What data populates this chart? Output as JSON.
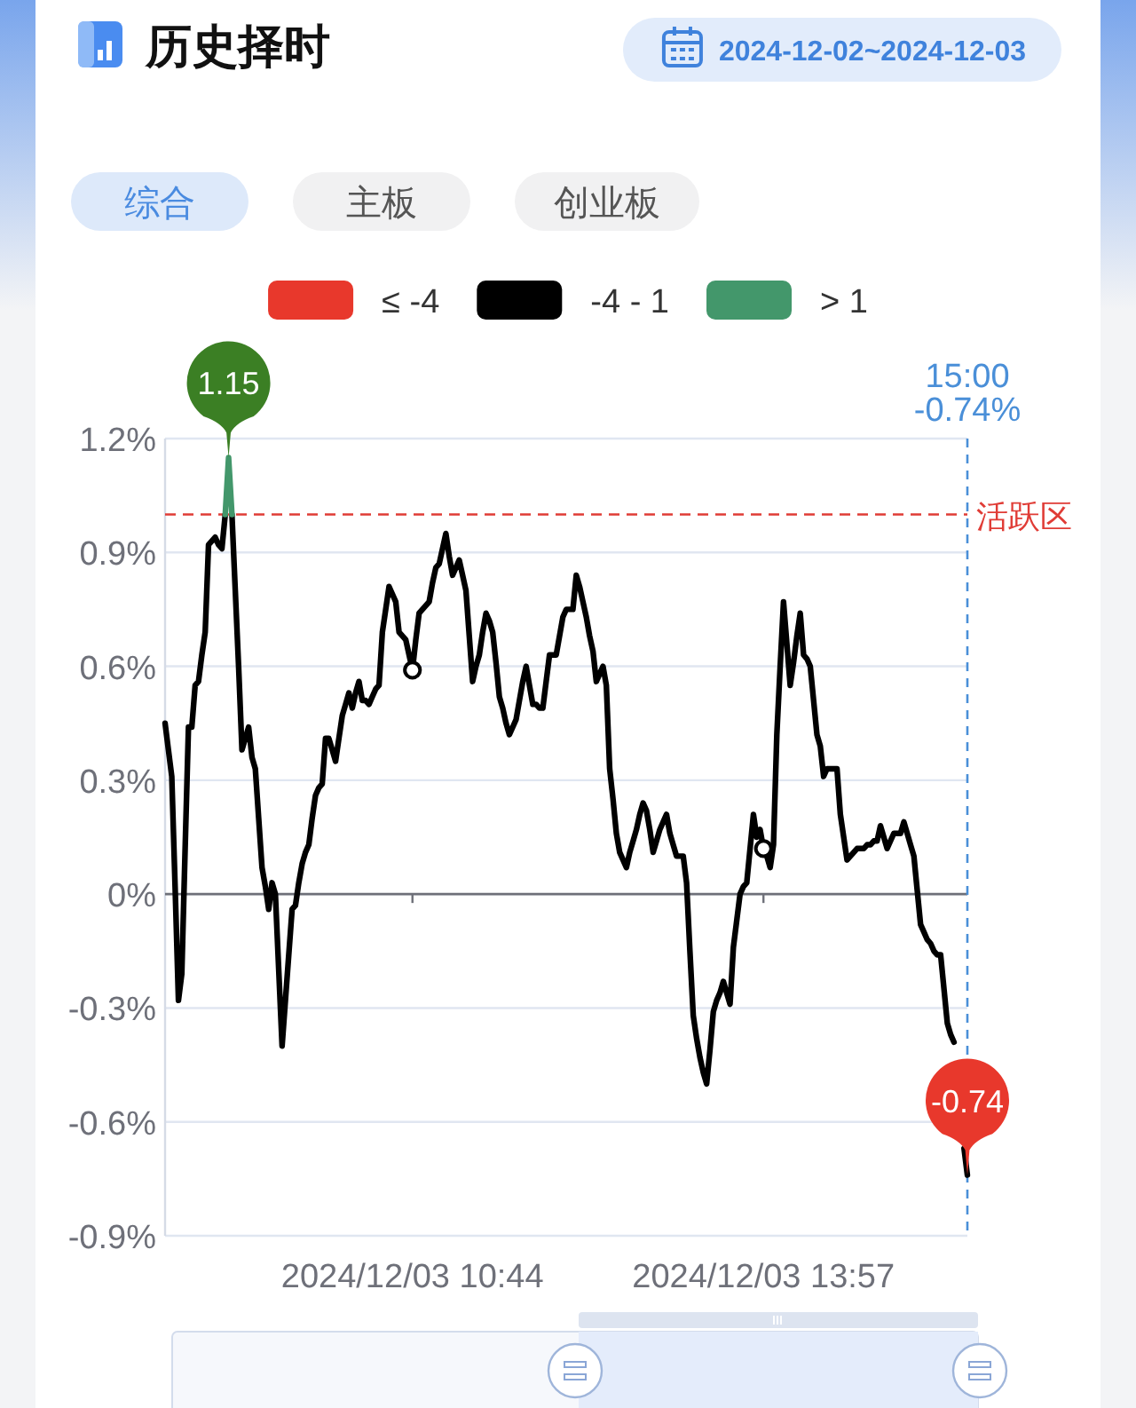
{
  "chart_data": {
    "type": "line",
    "title": "历史择时",
    "subtitle": "2024-12-02~2024-12-03",
    "annotations": [
      "综合",
      "主板",
      "创业板",
      {
        "text": "1.15",
        "y": 1.15
      },
      {
        "text": "-0.74",
        "y": -0.74
      },
      "15:00\n-0.74%"
    ],
    "categories": [
      null,
      null,
      null,
      null,
      null,
      null,
      null,
      null,
      null,
      null,
      null,
      null,
      null,
      null,
      null,
      null,
      null,
      null,
      null,
      null,
      null,
      null,
      null,
      null,
      null,
      null,
      null,
      null,
      null,
      null,
      null,
      null,
      null,
      null,
      null,
      null,
      null,
      null,
      null,
      null,
      null,
      null,
      null,
      null,
      null,
      null,
      null,
      null,
      null,
      null,
      null,
      null,
      null,
      null,
      null,
      null,
      null,
      null,
      null,
      null,
      null,
      null,
      null,
      null,
      null,
      null,
      null,
      null,
      null,
      null,
      null,
      null,
      null,
      null,
      "2024/12/03 10:44",
      null,
      null,
      null,
      null,
      null,
      null,
      null,
      null,
      null,
      null,
      null,
      null,
      null,
      null,
      null,
      null,
      null,
      null,
      null,
      null,
      null,
      null,
      null,
      null,
      null,
      null,
      null,
      null,
      null,
      null,
      null,
      null,
      null,
      null,
      null,
      null,
      null,
      null,
      null,
      null,
      null,
      null,
      null,
      null,
      null,
      null,
      null,
      null,
      null,
      null,
      null,
      null,
      null,
      null,
      null,
      null,
      null,
      null,
      null,
      null,
      null,
      null,
      null,
      null,
      null,
      null,
      null,
      null,
      null,
      null,
      null,
      null,
      null,
      null,
      null,
      null,
      null,
      null,
      null,
      null,
      null,
      null,
      null,
      null,
      null,
      null,
      null,
      null,
      null,
      null,
      null,
      null,
      null,
      null,
      null,
      null,
      null,
      null,
      null,
      null,
      null,
      null,
      null,
      null,
      "2024/12/03 13:57",
      null,
      null,
      null,
      null,
      null,
      null,
      null,
      null,
      null,
      null,
      null,
      null,
      null,
      null,
      null,
      null,
      null,
      null,
      null,
      null,
      null,
      null,
      null,
      null,
      null,
      null,
      null,
      null,
      null,
      null,
      null,
      null,
      null,
      null,
      null,
      null,
      null,
      null,
      null,
      null,
      null,
      null,
      null,
      null,
      null,
      null,
      null,
      null,
      null,
      null,
      null,
      null,
      null,
      null,
      null,
      null,
      null,
      null,
      null,
      null,
      null
    ],
    "series": [
      {
        "name": "≤ -4",
        "color": "#e8382c",
        "values": [
          null,
          null,
          null,
          null,
          null,
          null,
          null,
          null,
          null,
          null,
          null,
          null,
          null,
          null,
          null,
          null,
          null,
          null,
          null,
          null,
          null,
          null,
          null,
          null,
          null,
          null,
          null,
          null,
          null,
          null,
          null,
          null,
          null,
          null,
          null,
          null,
          null,
          null,
          null,
          null,
          null,
          null,
          null,
          null,
          null,
          null,
          null,
          null,
          null,
          null,
          null,
          null,
          null,
          null,
          null,
          null,
          null,
          null,
          null,
          null,
          null,
          null,
          null,
          null,
          null,
          null,
          null,
          null,
          null,
          null,
          null,
          null,
          null,
          null,
          null,
          null,
          null,
          null,
          null,
          null,
          null,
          null,
          null,
          null,
          null,
          null,
          null,
          null,
          null,
          null,
          null,
          null,
          null,
          null,
          null,
          null,
          null,
          null,
          null,
          null,
          null,
          null,
          null,
          null,
          null,
          null,
          null,
          null,
          null,
          null,
          null,
          null,
          null,
          null,
          null,
          null,
          null,
          null,
          null,
          null,
          null,
          null,
          null,
          null,
          null,
          null,
          null,
          null,
          null,
          null,
          null,
          null,
          null,
          null,
          null,
          null,
          null,
          null,
          null,
          null,
          null,
          null,
          null,
          null,
          null,
          null,
          null,
          null,
          null,
          null,
          null,
          null,
          null,
          null,
          null,
          null,
          null,
          null,
          null,
          null,
          null,
          null,
          null,
          null,
          null,
          null,
          null,
          null,
          null,
          null,
          null,
          null,
          null,
          null,
          null,
          null,
          null,
          null,
          null,
          null,
          null,
          null,
          null,
          null,
          null,
          null,
          null,
          null,
          null,
          null,
          null,
          null,
          null,
          null,
          null,
          null,
          null,
          null,
          null,
          null,
          null,
          null,
          null,
          null,
          null,
          null,
          null,
          null,
          null,
          null,
          null,
          null,
          null,
          null,
          null,
          null,
          null,
          null,
          null,
          null,
          null,
          null,
          null,
          null,
          null,
          null,
          null,
          null,
          null,
          null,
          null,
          null,
          null,
          null,
          null,
          null,
          null,
          null,
          null,
          null,
          null
        ]
      },
      {
        "name": "-4 - 1",
        "color": "#000000",
        "values": [
          0.45,
          0.38,
          0.31,
          0.02,
          -0.28,
          -0.21,
          0.12,
          0.44,
          0.44,
          0.55,
          0.56,
          0.63,
          0.69,
          0.92,
          0.93,
          0.94,
          0.92,
          0.91,
          1.0,
          null,
          1.0,
          0.8,
          0.6,
          0.38,
          0.41,
          0.44,
          0.36,
          0.33,
          0.2,
          0.07,
          0.02,
          -0.04,
          0.03,
          0.0,
          -0.2,
          -0.4,
          -0.28,
          -0.16,
          -0.04,
          -0.03,
          0.03,
          0.08,
          0.11,
          0.13,
          0.2,
          0.26,
          0.28,
          0.29,
          0.41,
          0.41,
          0.38,
          0.35,
          0.41,
          0.47,
          0.5,
          0.53,
          0.49,
          0.53,
          0.56,
          0.51,
          0.51,
          0.5,
          0.52,
          0.54,
          0.55,
          0.69,
          0.75,
          0.81,
          0.79,
          0.77,
          0.69,
          0.68,
          0.67,
          0.63,
          0.59,
          0.67,
          0.74,
          0.75,
          0.76,
          0.77,
          0.82,
          0.86,
          0.87,
          0.91,
          0.95,
          0.89,
          0.84,
          0.86,
          0.88,
          0.84,
          0.8,
          0.68,
          0.56,
          0.6,
          0.63,
          0.69,
          0.74,
          0.72,
          0.69,
          0.61,
          0.52,
          0.49,
          0.45,
          0.42,
          0.44,
          0.46,
          0.51,
          0.56,
          0.6,
          0.55,
          0.5,
          0.5,
          0.49,
          0.49,
          0.56,
          0.63,
          0.63,
          0.63,
          0.68,
          0.73,
          0.75,
          0.75,
          0.75,
          0.84,
          0.81,
          0.77,
          0.73,
          0.68,
          0.64,
          0.56,
          0.58,
          0.6,
          0.55,
          0.33,
          0.25,
          0.16,
          0.11,
          0.09,
          0.07,
          0.11,
          0.14,
          0.17,
          0.21,
          0.24,
          0.22,
          0.17,
          0.11,
          0.14,
          0.17,
          0.19,
          0.21,
          0.16,
          0.13,
          0.1,
          0.1,
          0.1,
          0.03,
          -0.15,
          -0.32,
          -0.38,
          -0.43,
          -0.47,
          -0.5,
          -0.41,
          -0.31,
          -0.28,
          -0.26,
          -0.23,
          -0.26,
          -0.29,
          -0.14,
          -0.07,
          0.0,
          0.02,
          0.03,
          0.12,
          0.21,
          0.15,
          0.17,
          0.12,
          0.1,
          0.07,
          0.13,
          0.42,
          0.6,
          0.77,
          0.66,
          0.55,
          0.61,
          0.68,
          0.74,
          0.63,
          0.62,
          0.6,
          0.51,
          0.42,
          0.39,
          0.31,
          0.33,
          0.33,
          0.33,
          0.33,
          0.21,
          0.15,
          0.09,
          0.1,
          0.11,
          0.12,
          0.12,
          0.12,
          0.13,
          0.13,
          0.14,
          0.14,
          0.18,
          0.15,
          0.12,
          0.14,
          0.16,
          0.16,
          0.16,
          0.19,
          0.16,
          0.13,
          0.1,
          0.01,
          -0.08,
          -0.1,
          -0.12,
          -0.13,
          -0.15,
          -0.16,
          -0.16,
          -0.25,
          -0.34,
          -0.37,
          -0.39,
          null,
          null,
          -0.67,
          -0.74
        ]
      },
      {
        "name": "> 1",
        "color": "#43976b",
        "values": [
          null,
          null,
          null,
          null,
          null,
          null,
          null,
          null,
          null,
          null,
          null,
          null,
          null,
          null,
          null,
          null,
          null,
          null,
          1.0,
          1.15,
          1.0,
          null,
          null,
          null,
          null,
          null,
          null,
          null,
          null,
          null,
          null,
          null,
          null,
          null,
          null,
          null,
          null,
          null,
          null,
          null,
          null,
          null,
          null,
          null,
          null,
          null,
          null,
          null,
          null,
          null,
          null,
          null,
          null,
          null,
          null,
          null,
          null,
          null,
          null,
          null,
          null,
          null,
          null,
          null,
          null,
          null,
          null,
          null,
          null,
          null,
          null,
          null,
          null,
          null,
          null,
          null,
          null,
          null,
          null,
          null,
          null,
          null,
          null,
          null,
          null,
          null,
          null,
          null,
          null,
          null,
          null,
          null,
          null,
          null,
          null,
          null,
          null,
          null,
          null,
          null,
          null,
          null,
          null,
          null,
          null,
          null,
          null,
          null,
          null,
          null,
          null,
          null,
          null,
          null,
          null,
          null,
          null,
          null,
          null,
          null,
          null,
          null,
          null,
          null,
          null,
          null,
          null,
          null,
          null,
          null,
          null,
          null,
          null,
          null,
          null,
          null,
          null,
          null,
          null,
          null,
          null,
          null,
          null,
          null,
          null,
          null,
          null,
          null,
          null,
          null,
          null,
          null,
          null,
          null,
          null,
          null,
          null,
          null,
          null,
          null,
          null,
          null,
          null,
          null,
          null,
          null,
          null,
          null,
          null,
          null,
          null,
          null,
          null,
          null,
          null,
          null,
          null,
          null,
          null,
          null,
          null,
          null,
          null,
          null,
          null,
          null,
          null,
          null,
          null,
          null,
          null,
          null,
          null,
          null,
          null,
          null,
          null,
          null,
          null,
          null,
          null,
          null,
          null,
          null,
          null,
          null,
          null,
          null,
          null,
          null,
          null,
          null,
          null,
          null,
          null,
          null,
          null,
          null,
          null,
          null,
          null,
          null,
          null,
          null,
          null,
          null,
          null,
          null,
          null,
          null,
          null,
          null,
          null,
          null,
          null,
          null,
          null,
          null,
          null,
          null,
          null
        ]
      },
      {
        "type": "scatter",
        "color": "#000000",
        "marker": "circle",
        "values": [
          null,
          null,
          null,
          null,
          null,
          null,
          null,
          null,
          null,
          null,
          null,
          null,
          null,
          null,
          null,
          null,
          null,
          null,
          null,
          null,
          null,
          null,
          null,
          null,
          null,
          null,
          null,
          null,
          null,
          null,
          null,
          null,
          null,
          null,
          null,
          null,
          null,
          null,
          null,
          null,
          null,
          null,
          null,
          null,
          null,
          null,
          null,
          null,
          null,
          null,
          null,
          null,
          null,
          null,
          null,
          null,
          null,
          null,
          null,
          null,
          null,
          null,
          null,
          null,
          null,
          null,
          null,
          null,
          null,
          null,
          null,
          null,
          null,
          null,
          0.59,
          null,
          null,
          null,
          null,
          null,
          null,
          null,
          null,
          null,
          null,
          null,
          null,
          null,
          null,
          null,
          null,
          null,
          null,
          null,
          null,
          null,
          null,
          null,
          null,
          null,
          null,
          null,
          null,
          null,
          null,
          null,
          null,
          null,
          null,
          null,
          null,
          null,
          null,
          null,
          null,
          null,
          null,
          null,
          null,
          null,
          null,
          null,
          null,
          null,
          null,
          null,
          null,
          null,
          null,
          null,
          null,
          null,
          null,
          null,
          null,
          null,
          null,
          null,
          null,
          null,
          null,
          null,
          null,
          null,
          null,
          null,
          null,
          null,
          null,
          null,
          null,
          null,
          null,
          null,
          null,
          null,
          null,
          null,
          null,
          null,
          null,
          null,
          null,
          null,
          null,
          null,
          null,
          null,
          null,
          null,
          null,
          null,
          null,
          null,
          null,
          null,
          null,
          null,
          null,
          0.12,
          null,
          null,
          null,
          null,
          null,
          null,
          null,
          null,
          null,
          null,
          null,
          null,
          null,
          null,
          null,
          null,
          null,
          null,
          null,
          null,
          null,
          null,
          null,
          null,
          null,
          null,
          null,
          null,
          null,
          null,
          null,
          null,
          null,
          null,
          null,
          null,
          null,
          null,
          null,
          null,
          null,
          null,
          null,
          null,
          null,
          null,
          null,
          null,
          null,
          null,
          null,
          null,
          null,
          null,
          null,
          null,
          null,
          null,
          null,
          null,
          null
        ]
      }
    ],
    "ylim": [
      -0.9,
      1.2
    ],
    "yticks": [
      {
        "value": -0.9,
        "label": "-0.9%"
      },
      {
        "value": -0.6,
        "label": "-0.6%"
      },
      {
        "value": -0.3,
        "label": "-0.3%"
      },
      {
        "value": 0,
        "label": "0%"
      },
      {
        "value": 0.3,
        "label": "0.3%"
      },
      {
        "value": 0.6,
        "label": "0.6%"
      },
      {
        "value": 0.9,
        "label": "0.9%"
      },
      {
        "value": 1.2,
        "label": "1.2%"
      }
    ],
    "ref_lines": [
      {
        "axis": "y",
        "value": 1.0,
        "label": "活跃区",
        "color": "#e03c36",
        "line_style": "dashed"
      }
    ],
    "grid": "y",
    "legend": "top"
  }
}
